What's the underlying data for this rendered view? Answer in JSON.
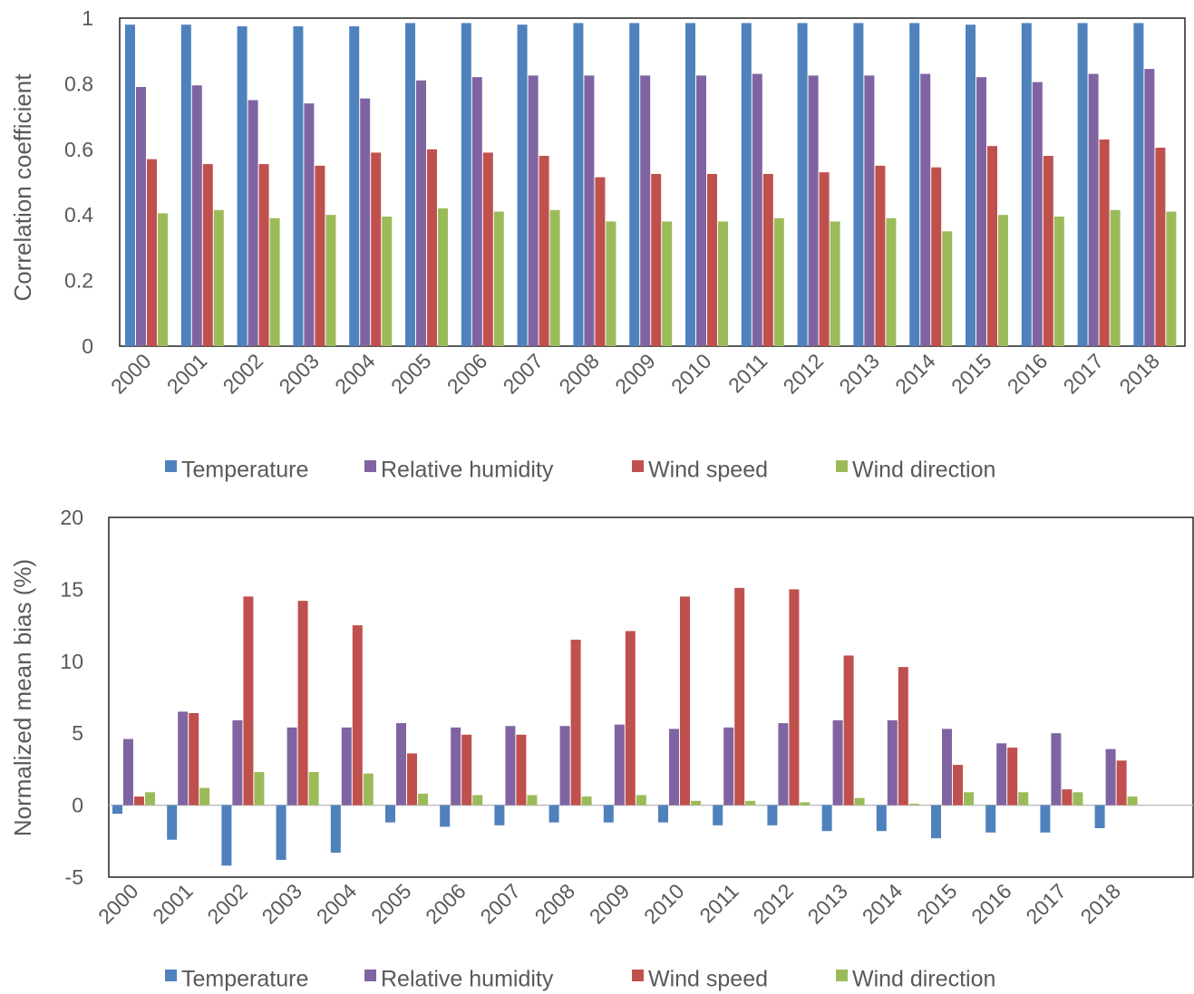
{
  "chart_data": [
    {
      "type": "bar",
      "categories": [
        "2000",
        "2001",
        "2002",
        "2003",
        "2004",
        "2005",
        "2006",
        "2007",
        "2008",
        "2009",
        "2010",
        "2011",
        "2012",
        "2013",
        "2014",
        "2015",
        "2016",
        "2017",
        "2018"
      ],
      "series": [
        {
          "name": "Temperature",
          "color": "#4F81BD",
          "values": [
            0.98,
            0.98,
            0.975,
            0.975,
            0.975,
            0.985,
            0.985,
            0.98,
            0.985,
            0.985,
            0.985,
            0.985,
            0.985,
            0.985,
            0.985,
            0.98,
            0.985,
            0.985,
            0.985
          ]
        },
        {
          "name": "Relative humidity",
          "color": "#8064A2",
          "values": [
            0.79,
            0.795,
            0.75,
            0.74,
            0.755,
            0.81,
            0.82,
            0.825,
            0.825,
            0.825,
            0.825,
            0.83,
            0.825,
            0.825,
            0.83,
            0.82,
            0.805,
            0.83,
            0.845
          ]
        },
        {
          "name": "Wind speed",
          "color": "#C0504D",
          "values": [
            0.57,
            0.555,
            0.555,
            0.55,
            0.59,
            0.6,
            0.59,
            0.58,
            0.515,
            0.525,
            0.525,
            0.525,
            0.53,
            0.55,
            0.545,
            0.61,
            0.58,
            0.63,
            0.605
          ]
        },
        {
          "name": "Wind direction",
          "color": "#9BBB59",
          "values": [
            0.405,
            0.415,
            0.39,
            0.4,
            0.395,
            0.42,
            0.41,
            0.415,
            0.38,
            0.38,
            0.38,
            0.39,
            0.38,
            0.39,
            0.35,
            0.4,
            0.395,
            0.415,
            0.41
          ]
        }
      ],
      "title": "",
      "xlabel": "",
      "ylabel": "Correlation coefficient",
      "ylim": [
        0,
        1
      ],
      "yticks": [
        "0",
        "0.2",
        "0.4",
        "0.6",
        "0.8",
        "1"
      ],
      "grid": false,
      "legend": "bottom"
    },
    {
      "type": "bar",
      "categories": [
        "2000",
        "2001",
        "2002",
        "2003",
        "2004",
        "2005",
        "2006",
        "2007",
        "2008",
        "2009",
        "2010",
        "2011",
        "2012",
        "2013",
        "2014",
        "2015",
        "2016",
        "2017",
        "2018"
      ],
      "series": [
        {
          "name": "Temperature",
          "color": "#4F81BD",
          "values": [
            -0.6,
            -2.4,
            -4.2,
            -3.8,
            -3.3,
            -1.2,
            -1.5,
            -1.4,
            -1.2,
            -1.2,
            -1.2,
            -1.4,
            -1.4,
            -1.8,
            -1.8,
            -2.3,
            -1.9,
            -1.9,
            -1.6
          ]
        },
        {
          "name": "Relative humidity",
          "color": "#8064A2",
          "values": [
            4.6,
            6.5,
            5.9,
            5.4,
            5.4,
            5.7,
            5.4,
            5.5,
            5.5,
            5.6,
            5.3,
            5.4,
            5.7,
            5.9,
            5.9,
            5.3,
            4.3,
            5.0,
            3.9
          ]
        },
        {
          "name": "Wind speed",
          "color": "#C0504D",
          "values": [
            0.6,
            6.4,
            14.5,
            14.2,
            12.5,
            3.6,
            4.9,
            4.9,
            11.5,
            12.1,
            14.5,
            15.1,
            15.0,
            10.4,
            9.6,
            2.8,
            4.0,
            1.1,
            3.1
          ]
        },
        {
          "name": "Wind direction",
          "color": "#9BBB59",
          "values": [
            0.9,
            1.2,
            2.3,
            2.3,
            2.2,
            0.8,
            0.7,
            0.7,
            0.6,
            0.7,
            0.3,
            0.3,
            0.2,
            0.5,
            0.1,
            0.9,
            0.9,
            0.9,
            0.6
          ]
        }
      ],
      "title": "",
      "xlabel": "",
      "ylabel": "Normalized mean bias (%)",
      "ylim": [
        -5,
        20
      ],
      "yticks": [
        "-5",
        "0",
        "5",
        "10",
        "15",
        "20"
      ],
      "grid": false,
      "legend": "bottom"
    }
  ]
}
